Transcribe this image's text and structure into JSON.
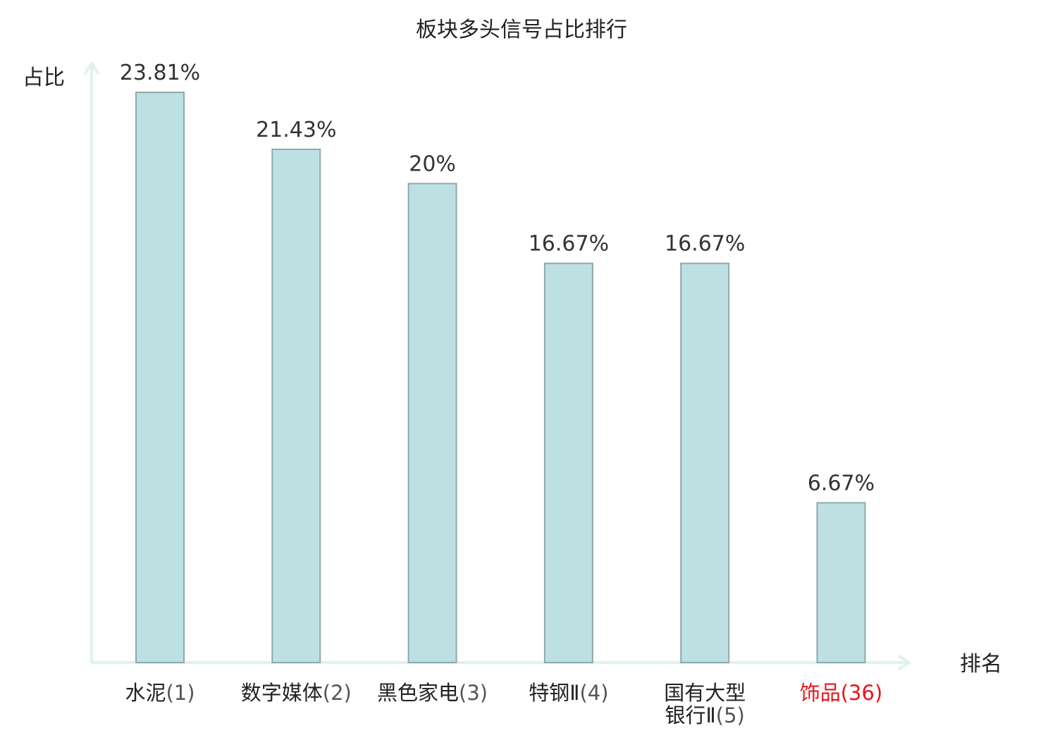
{
  "chart_data": {
    "type": "bar",
    "title": "板块多头信号占比排行",
    "ylabel": "占比",
    "xlabel": "排名",
    "categories": [
      {
        "name": "水泥",
        "rank": "(1)",
        "lines": [
          "水泥"
        ],
        "highlight": false
      },
      {
        "name": "数字媒体",
        "rank": "(2)",
        "lines": [
          "数字媒体"
        ],
        "highlight": false
      },
      {
        "name": "黑色家电",
        "rank": "(3)",
        "lines": [
          "黑色家电"
        ],
        "highlight": false
      },
      {
        "name": "特钢Ⅱ",
        "rank": "(4)",
        "lines": [
          "特钢Ⅱ"
        ],
        "highlight": false
      },
      {
        "name": "国有大型银行Ⅱ",
        "rank": "(5)",
        "lines": [
          "国有大型",
          "银行Ⅱ"
        ],
        "highlight": false
      },
      {
        "name": "饰品",
        "rank": "(36)",
        "lines": [
          "饰品"
        ],
        "highlight": true
      }
    ],
    "values": [
      23.81,
      21.43,
      20,
      16.67,
      16.67,
      6.67
    ],
    "value_labels": [
      "23.81%",
      "21.43%",
      "20%",
      "16.67%",
      "16.67%",
      "6.67%"
    ],
    "ylim": [
      0,
      25
    ],
    "grid": false,
    "legend": "none",
    "colors": {
      "bar_fill": "#bde0e3",
      "bar_stroke": "#8fa9ab",
      "axis": "#dff2ef",
      "highlight_text": "#e8151b",
      "normal_text": "#222222",
      "rank_text": "#555555"
    }
  }
}
